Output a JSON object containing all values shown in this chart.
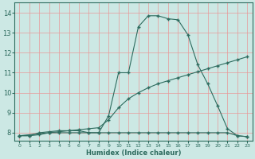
{
  "xlabel": "Humidex (Indice chaleur)",
  "bg_color": "#cce8e4",
  "grid_color": "#e89898",
  "line_color": "#2d6b5e",
  "xlim": [
    -0.5,
    23.5
  ],
  "ylim": [
    7.6,
    14.5
  ],
  "xticks": [
    0,
    1,
    2,
    3,
    4,
    5,
    6,
    7,
    8,
    9,
    10,
    11,
    12,
    13,
    14,
    15,
    16,
    17,
    18,
    19,
    20,
    21,
    22,
    23
  ],
  "yticks": [
    8,
    9,
    10,
    11,
    12,
    13,
    14
  ],
  "curve1_x": [
    0,
    1,
    2,
    3,
    4,
    5,
    6,
    7,
    8,
    9,
    10,
    11,
    12,
    13,
    14,
    15,
    16,
    17,
    18,
    19,
    20,
    21,
    22,
    23
  ],
  "curve1_y": [
    7.85,
    7.85,
    8.0,
    8.05,
    8.1,
    8.1,
    8.1,
    8.0,
    8.0,
    8.85,
    11.0,
    11.0,
    13.3,
    13.85,
    13.85,
    13.7,
    13.65,
    12.9,
    11.4,
    10.45,
    9.35,
    8.2,
    7.85,
    7.8
  ],
  "curve2_x": [
    0,
    3,
    4,
    5,
    6,
    7,
    8,
    9,
    10,
    11,
    12,
    13,
    14,
    15,
    16,
    17,
    18,
    19,
    20,
    21,
    22,
    23
  ],
  "curve2_y": [
    7.85,
    8.0,
    8.05,
    8.1,
    8.15,
    8.2,
    8.25,
    8.65,
    9.25,
    9.7,
    10.0,
    10.25,
    10.45,
    10.6,
    10.75,
    10.9,
    11.05,
    11.2,
    11.35,
    11.5,
    11.65,
    11.8
  ],
  "curve3_x": [
    0,
    1,
    2,
    3,
    4,
    5,
    6,
    7,
    8,
    9,
    10,
    11,
    12,
    13,
    14,
    15,
    16,
    17,
    18,
    19,
    20,
    21,
    22,
    23
  ],
  "curve3_y": [
    7.85,
    7.85,
    7.9,
    8.0,
    8.0,
    8.0,
    8.0,
    8.0,
    8.0,
    8.0,
    8.0,
    8.0,
    8.0,
    8.0,
    8.0,
    8.0,
    8.0,
    8.0,
    8.0,
    8.0,
    8.0,
    8.0,
    7.85,
    7.8
  ]
}
